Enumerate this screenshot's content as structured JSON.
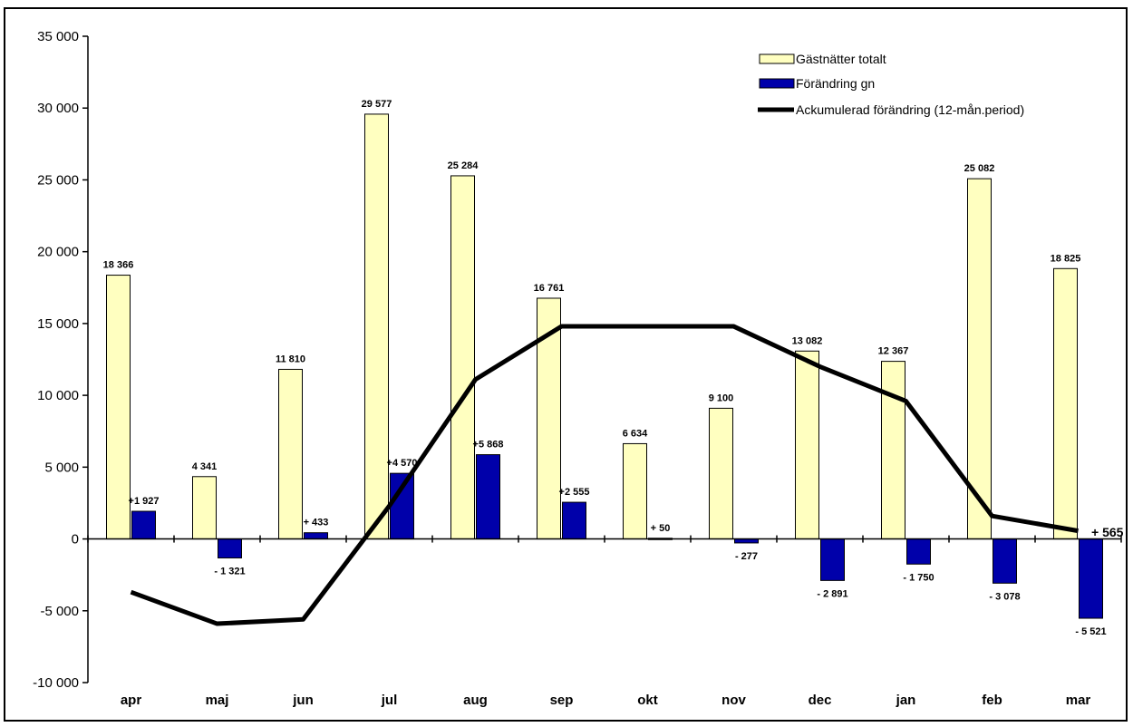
{
  "chart_data": {
    "type": "bar",
    "categories": [
      "apr",
      "maj",
      "jun",
      "jul",
      "aug",
      "sep",
      "okt",
      "nov",
      "dec",
      "jan",
      "feb",
      "mar"
    ],
    "ylim": [
      -10000,
      35000
    ],
    "yticks": [
      -10000,
      -5000,
      0,
      5000,
      10000,
      15000,
      20000,
      25000,
      30000,
      35000
    ],
    "ytick_labels": [
      "-10 000",
      "-5 000",
      "0",
      "5 000",
      "10 000",
      "15 000",
      "20 000",
      "25 000",
      "30 000",
      "35 000"
    ],
    "grid": false,
    "legend_position": "top-right",
    "series": [
      {
        "name": "Gästnätter totalt",
        "kind": "bar",
        "color": "#ffffc0",
        "values": [
          18366,
          4341,
          11810,
          29577,
          25284,
          16761,
          6634,
          9100,
          13082,
          12367,
          25082,
          18825
        ],
        "labels": [
          "18 366",
          "4 341",
          "11 810",
          "29 577",
          "25 284",
          "16 761",
          "6 634",
          "9 100",
          "13 082",
          "12 367",
          "25 082",
          "18 825"
        ]
      },
      {
        "name": "Förändring gn",
        "kind": "bar",
        "color": "#0000aa",
        "values": [
          1927,
          -1321,
          433,
          4570,
          5868,
          2555,
          50,
          -277,
          -2891,
          -1750,
          -3078,
          -5521
        ],
        "labels": [
          "+1 927",
          "- 1 321",
          "+ 433",
          "+4 570",
          "+5 868",
          "+2 555",
          "+ 50",
          "- 277",
          "- 2 891",
          "- 1 750",
          "- 3 078",
          "- 5 521"
        ]
      },
      {
        "name": "Ackumulerad förändring (12-mån.period)",
        "kind": "line",
        "color": "#000000",
        "values": [
          -3700,
          -5900,
          -5600,
          2300,
          11100,
          14800,
          14800,
          14800,
          12000,
          9600,
          1600,
          565
        ]
      }
    ],
    "end_label": "+ 565"
  }
}
